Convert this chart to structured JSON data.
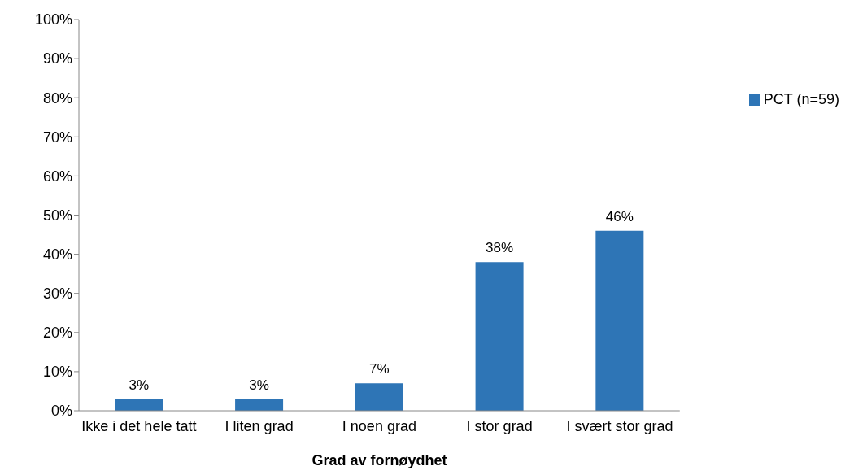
{
  "chart_data": {
    "type": "bar",
    "xlabel": "Grad av fornøydhet",
    "categories": [
      "Ikke i det hele tatt",
      "I liten grad",
      "I noen grad",
      "I stor grad",
      "I svært stor grad"
    ],
    "series": [
      {
        "name": "PCT (n=59)",
        "color": "#2e75b6",
        "values": [
          3,
          3,
          7,
          38,
          46
        ],
        "value_labels": [
          "3%",
          "3%",
          "7%",
          "38%",
          "46%"
        ]
      }
    ],
    "ylim": [
      0,
      100
    ],
    "yticks": [
      {
        "value": 0,
        "label": "0%"
      },
      {
        "value": 10,
        "label": "10%"
      },
      {
        "value": 20,
        "label": "20%"
      },
      {
        "value": 30,
        "label": "30%"
      },
      {
        "value": 40,
        "label": "40%"
      },
      {
        "value": 50,
        "label": "50%"
      },
      {
        "value": 60,
        "label": "60%"
      },
      {
        "value": 70,
        "label": "70%"
      },
      {
        "value": 80,
        "label": "80%"
      },
      {
        "value": 90,
        "label": "90%"
      },
      {
        "value": 100,
        "label": "100%"
      }
    ],
    "legend": "right"
  }
}
